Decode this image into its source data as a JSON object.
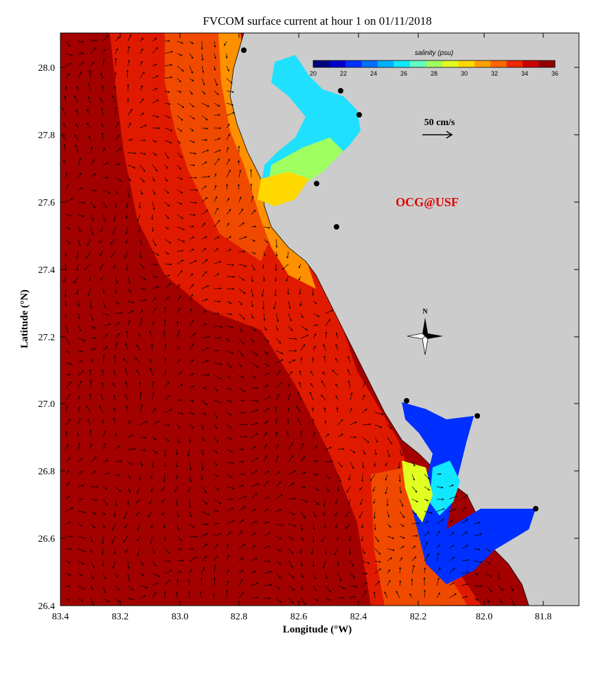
{
  "title": "FVCOM surface current at hour 1 on 01/11/2018",
  "x_axis": {
    "label": "Longitude (°W)",
    "ticks": [
      "83.4",
      "83.2",
      "83.0",
      "82.8",
      "82.6",
      "82.4",
      "82.2",
      "82.0",
      "81.8"
    ]
  },
  "y_axis": {
    "label": "Latitude (°N)",
    "ticks": [
      "28.0",
      "27.8",
      "27.6",
      "27.4",
      "27.2",
      "27.0",
      "26.8",
      "26.6",
      "26.4"
    ]
  },
  "colorbar": {
    "title": "salinity (psu)",
    "ticks": [
      "20",
      "22",
      "24",
      "26",
      "28",
      "30",
      "32",
      "34",
      "36"
    ],
    "colors": [
      "#00007f",
      "#0000c8",
      "#0030ff",
      "#0070ff",
      "#00b0ff",
      "#10e8ff",
      "#60ffc0",
      "#a0ff60",
      "#e0ff20",
      "#ffd800",
      "#ffa000",
      "#ff6800",
      "#f02800",
      "#c80000",
      "#900000"
    ]
  },
  "scale_label": "50 cm/s",
  "credit": "OCG@USF",
  "north_label": "N",
  "palette": {
    "land": "#cccccc",
    "deep_salinity": "#a30000",
    "mid_salinity": "#e01a00",
    "shelf_salinity": "#f04a00",
    "estuary_salinity": "#ff9000"
  }
}
